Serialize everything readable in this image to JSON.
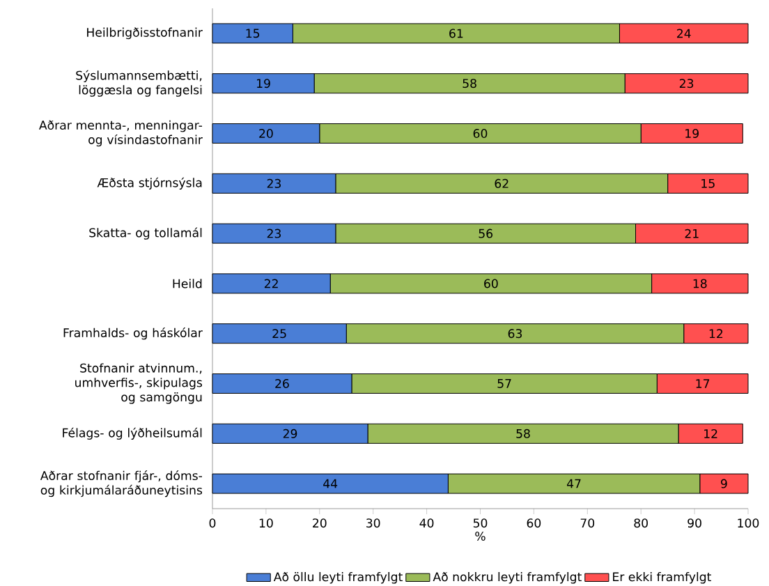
{
  "chart_data": {
    "type": "bar",
    "orientation": "horizontal",
    "stacked": true,
    "data_labels": true,
    "legend": "bottom",
    "xlabel": "%",
    "categories": [
      "Heilbrigðisstofnanir",
      "Sýslumannsembætti, löggæsla og fangelsi",
      "Aðrar mennta-, menningar- og vísindastofnanir",
      "Æðsta stjórnsýsla",
      "Skatta- og tollamál",
      "Heild",
      "Framhalds- og háskólar",
      "Stofnanir atvinnum., umhverfis-, skipulags og samgöngu",
      "Félags- og lýðheilsumál",
      "Aðrar stofnanir fjár-, dóms- og kirkjumálaráðuneytisins"
    ],
    "series": [
      {
        "name": "Að öllu leyti framfylgt",
        "color": "#4a7ed6",
        "values": [
          15,
          19,
          20,
          23,
          23,
          22,
          25,
          26,
          29,
          44
        ]
      },
      {
        "name": "Að nokkru leyti framfylgt",
        "color": "#9bbb59",
        "values": [
          61,
          58,
          60,
          62,
          56,
          60,
          63,
          57,
          58,
          47
        ]
      },
      {
        "name": "Er ekki framfylgt",
        "color": "#ff5050",
        "values": [
          24,
          23,
          19,
          15,
          21,
          18,
          12,
          17,
          12,
          9
        ]
      }
    ],
    "xlim": [
      0,
      100
    ],
    "xticks": [
      0,
      10,
      20,
      30,
      40,
      50,
      60,
      70,
      80,
      90,
      100
    ]
  }
}
